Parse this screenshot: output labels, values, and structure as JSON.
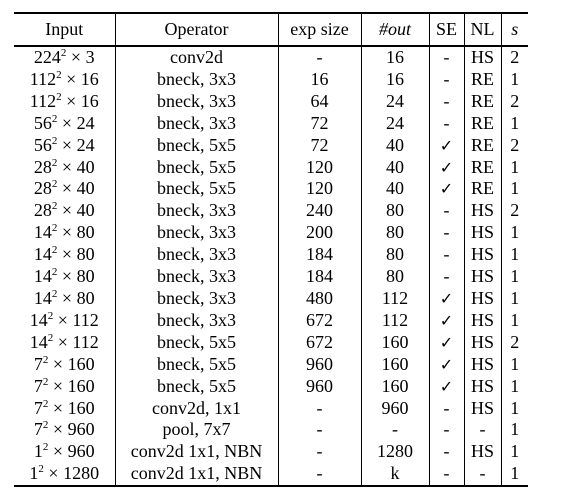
{
  "table": {
    "headers": {
      "input": "Input",
      "operator": "Operator",
      "exp_size": "exp size",
      "out": "#out",
      "se": "SE",
      "nl": "NL",
      "s": "s"
    },
    "rows": [
      {
        "input": {
          "base": "224",
          "exp": "2",
          "mult": "3"
        },
        "operator": "conv2d",
        "exp_size": "-",
        "out": "16",
        "se": "-",
        "nl": "HS",
        "s": "2"
      },
      {
        "input": {
          "base": "112",
          "exp": "2",
          "mult": "16"
        },
        "operator": "bneck, 3x3",
        "exp_size": "16",
        "out": "16",
        "se": "-",
        "nl": "RE",
        "s": "1"
      },
      {
        "input": {
          "base": "112",
          "exp": "2",
          "mult": "16"
        },
        "operator": "bneck, 3x3",
        "exp_size": "64",
        "out": "24",
        "se": "-",
        "nl": "RE",
        "s": "2"
      },
      {
        "input": {
          "base": "56",
          "exp": "2",
          "mult": "24"
        },
        "operator": "bneck, 3x3",
        "exp_size": "72",
        "out": "24",
        "se": "-",
        "nl": "RE",
        "s": "1"
      },
      {
        "input": {
          "base": "56",
          "exp": "2",
          "mult": "24"
        },
        "operator": "bneck, 5x5",
        "exp_size": "72",
        "out": "40",
        "se": "✓",
        "nl": "RE",
        "s": "2"
      },
      {
        "input": {
          "base": "28",
          "exp": "2",
          "mult": "40"
        },
        "operator": "bneck, 5x5",
        "exp_size": "120",
        "out": "40",
        "se": "✓",
        "nl": "RE",
        "s": "1"
      },
      {
        "input": {
          "base": "28",
          "exp": "2",
          "mult": "40"
        },
        "operator": "bneck, 5x5",
        "exp_size": "120",
        "out": "40",
        "se": "✓",
        "nl": "RE",
        "s": "1"
      },
      {
        "input": {
          "base": "28",
          "exp": "2",
          "mult": "40"
        },
        "operator": "bneck, 3x3",
        "exp_size": "240",
        "out": "80",
        "se": "-",
        "nl": "HS",
        "s": "2"
      },
      {
        "input": {
          "base": "14",
          "exp": "2",
          "mult": "80"
        },
        "operator": "bneck, 3x3",
        "exp_size": "200",
        "out": "80",
        "se": "-",
        "nl": "HS",
        "s": "1"
      },
      {
        "input": {
          "base": "14",
          "exp": "2",
          "mult": "80"
        },
        "operator": "bneck, 3x3",
        "exp_size": "184",
        "out": "80",
        "se": "-",
        "nl": "HS",
        "s": "1"
      },
      {
        "input": {
          "base": "14",
          "exp": "2",
          "mult": "80"
        },
        "operator": "bneck, 3x3",
        "exp_size": "184",
        "out": "80",
        "se": "-",
        "nl": "HS",
        "s": "1"
      },
      {
        "input": {
          "base": "14",
          "exp": "2",
          "mult": "80"
        },
        "operator": "bneck, 3x3",
        "exp_size": "480",
        "out": "112",
        "se": "✓",
        "nl": "HS",
        "s": "1"
      },
      {
        "input": {
          "base": "14",
          "exp": "2",
          "mult": "112"
        },
        "operator": "bneck, 3x3",
        "exp_size": "672",
        "out": "112",
        "se": "✓",
        "nl": "HS",
        "s": "1"
      },
      {
        "input": {
          "base": "14",
          "exp": "2",
          "mult": "112"
        },
        "operator": "bneck, 5x5",
        "exp_size": "672",
        "out": "160",
        "se": "✓",
        "nl": "HS",
        "s": "2"
      },
      {
        "input": {
          "base": "7",
          "exp": "2",
          "mult": "160"
        },
        "operator": "bneck, 5x5",
        "exp_size": "960",
        "out": "160",
        "se": "✓",
        "nl": "HS",
        "s": "1"
      },
      {
        "input": {
          "base": "7",
          "exp": "2",
          "mult": "160"
        },
        "operator": "bneck, 5x5",
        "exp_size": "960",
        "out": "160",
        "se": "✓",
        "nl": "HS",
        "s": "1"
      },
      {
        "input": {
          "base": "7",
          "exp": "2",
          "mult": "160"
        },
        "operator": "conv2d, 1x1",
        "exp_size": "-",
        "out": "960",
        "se": "-",
        "nl": "HS",
        "s": "1"
      },
      {
        "input": {
          "base": "7",
          "exp": "2",
          "mult": "960"
        },
        "operator": "pool, 7x7",
        "exp_size": "-",
        "out": "-",
        "se": "-",
        "nl": "-",
        "s": "1"
      },
      {
        "input": {
          "base": "1",
          "exp": "2",
          "mult": "960"
        },
        "operator": "conv2d 1x1, NBN",
        "exp_size": "-",
        "out": "1280",
        "se": "-",
        "nl": "HS",
        "s": "1"
      },
      {
        "input": {
          "base": "1",
          "exp": "2",
          "mult": "1280"
        },
        "operator": "conv2d 1x1, NBN",
        "exp_size": "-",
        "out": "k",
        "se": "-",
        "nl": "-",
        "s": "1"
      }
    ]
  }
}
